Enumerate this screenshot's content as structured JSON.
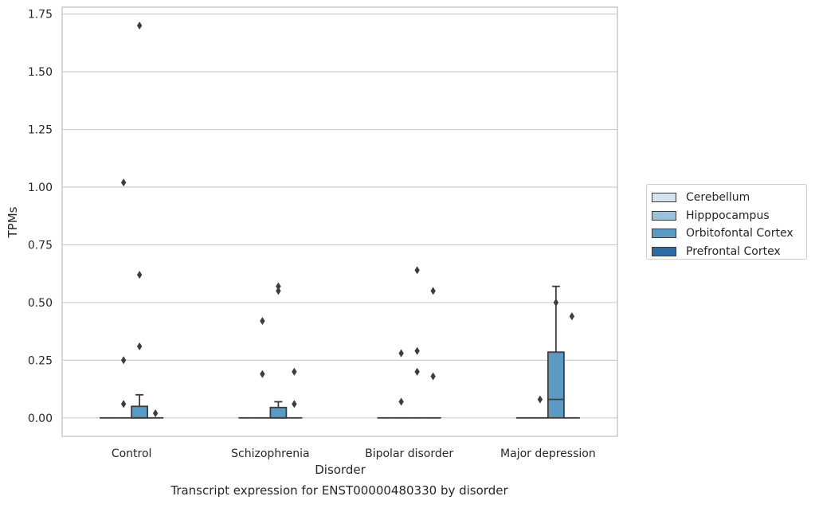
{
  "caption": "Transcript expression for ENST00000480330 by disorder",
  "chart_data": {
    "type": "box",
    "title": "",
    "xlabel": "Disorder",
    "ylabel": "TPMs",
    "ylim": [
      -0.08,
      1.78
    ],
    "yticks": [
      0.0,
      0.25,
      0.5,
      0.75,
      1.0,
      1.25,
      1.5,
      1.75
    ],
    "ytick_labels": [
      "0.00",
      "0.25",
      "0.50",
      "0.75",
      "1.00",
      "1.25",
      "1.50",
      "1.75"
    ],
    "grid": "horizontal",
    "legend_position": "right",
    "categories": [
      "Control",
      "Schizophrenia",
      "Bipolar disorder",
      "Major depression"
    ],
    "series": [
      {
        "name": "Cerebellum",
        "color": "#d4e3f0",
        "boxes": [
          {
            "q1": 0,
            "median": 0,
            "q3": 0,
            "whisker_low": 0,
            "whisker_high": 0,
            "outliers": []
          },
          {
            "q1": 0,
            "median": 0,
            "q3": 0,
            "whisker_low": 0,
            "whisker_high": 0,
            "outliers": []
          },
          {
            "q1": 0,
            "median": 0,
            "q3": 0,
            "whisker_low": 0,
            "whisker_high": 0,
            "outliers": []
          },
          {
            "q1": 0,
            "median": 0,
            "q3": 0,
            "whisker_low": 0,
            "whisker_high": 0,
            "outliers": []
          }
        ]
      },
      {
        "name": "Hipppocampus",
        "color": "#9bc2dc",
        "boxes": [
          {
            "q1": 0,
            "median": 0,
            "q3": 0,
            "whisker_low": 0,
            "whisker_high": 0,
            "outliers": [
              0.06,
              0.25,
              1.02
            ]
          },
          {
            "q1": 0,
            "median": 0,
            "q3": 0,
            "whisker_low": 0,
            "whisker_high": 0,
            "outliers": [
              0.19,
              0.42
            ]
          },
          {
            "q1": 0,
            "median": 0,
            "q3": 0,
            "whisker_low": 0,
            "whisker_high": 0,
            "outliers": [
              0.07,
              0.28
            ]
          },
          {
            "q1": 0,
            "median": 0,
            "q3": 0,
            "whisker_low": 0,
            "whisker_high": 0,
            "outliers": [
              0.08
            ]
          }
        ]
      },
      {
        "name": "Orbitofontal Cortex",
        "color": "#5b9ac5",
        "boxes": [
          {
            "q1": 0,
            "median": 0,
            "q3": 0.05,
            "whisker_low": 0,
            "whisker_high": 0.1,
            "outliers": [
              0.31,
              0.62,
              1.7
            ]
          },
          {
            "q1": 0,
            "median": 0,
            "q3": 0.045,
            "whisker_low": 0,
            "whisker_high": 0.07,
            "outliers": [
              0.55,
              0.57
            ]
          },
          {
            "q1": 0,
            "median": 0,
            "q3": 0,
            "whisker_low": 0,
            "whisker_high": 0,
            "outliers": [
              0.2,
              0.29,
              0.64
            ]
          },
          {
            "q1": 0,
            "median": 0.08,
            "q3": 0.285,
            "whisker_low": 0,
            "whisker_high": 0.57,
            "outliers": [
              0.5
            ]
          }
        ]
      },
      {
        "name": "Prefrontal Cortex",
        "color": "#2b6ba8",
        "boxes": [
          {
            "q1": 0,
            "median": 0,
            "q3": 0,
            "whisker_low": 0,
            "whisker_high": 0,
            "outliers": [
              0.02
            ]
          },
          {
            "q1": 0,
            "median": 0,
            "q3": 0,
            "whisker_low": 0,
            "whisker_high": 0,
            "outliers": [
              0.06,
              0.2
            ]
          },
          {
            "q1": 0,
            "median": 0,
            "q3": 0,
            "whisker_low": 0,
            "whisker_high": 0,
            "outliers": [
              0.18,
              0.55
            ]
          },
          {
            "q1": 0,
            "median": 0,
            "q3": 0,
            "whisker_low": 0,
            "whisker_high": 0,
            "outliers": [
              0.44
            ]
          }
        ]
      }
    ]
  }
}
